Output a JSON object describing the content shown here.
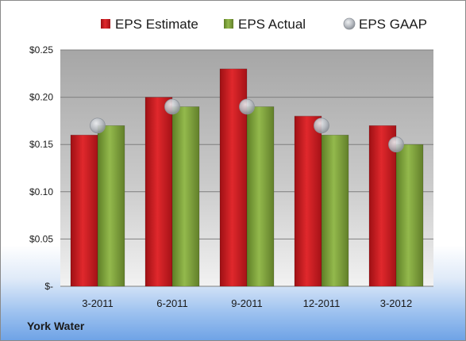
{
  "chart_data": {
    "type": "bar",
    "categories": [
      "3-2011",
      "6-2011",
      "9-2011",
      "12-2011",
      "3-2012"
    ],
    "series": [
      {
        "name": "EPS Estimate",
        "kind": "bar",
        "color": "#cc1a1f",
        "values": [
          0.16,
          0.2,
          0.23,
          0.18,
          0.17
        ]
      },
      {
        "name": "EPS Actual",
        "kind": "bar",
        "color": "#7da33c",
        "values": [
          0.17,
          0.19,
          0.19,
          0.16,
          0.15
        ]
      },
      {
        "name": "EPS GAAP",
        "kind": "marker",
        "color": "#bfc3c8",
        "values": [
          0.17,
          0.19,
          0.19,
          0.17,
          0.15
        ]
      }
    ],
    "ylim": [
      0,
      0.25
    ],
    "yticks": [
      0,
      0.05,
      0.1,
      0.15,
      0.2,
      0.25
    ],
    "ytick_labels": [
      "$-",
      "$0.05",
      "$0.10",
      "$0.15",
      "$0.20",
      "$0.25"
    ],
    "grid": true,
    "legend_position": "top"
  },
  "company": "York Water"
}
